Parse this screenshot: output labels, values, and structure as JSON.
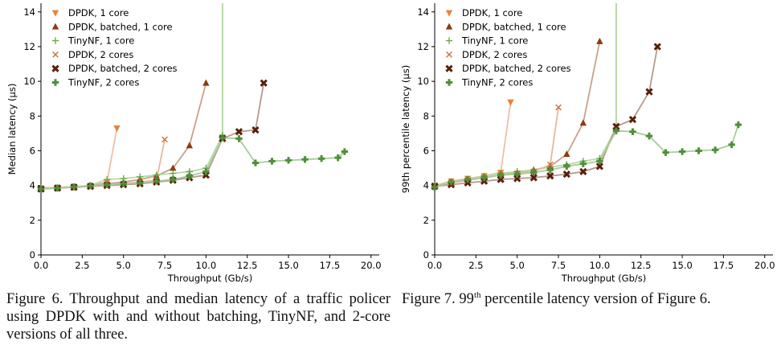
{
  "captions": {
    "fig6": "Figure 6. Throughput and median latency of a traffic policer using DPDK with and without batching, TinyNF, and 2-core versions of all three.",
    "fig7_prefix": "Figure 7. 99",
    "fig7_sup": "th",
    "fig7_suffix": " percentile latency version of Figure 6."
  },
  "chart_data": [
    {
      "type": "line",
      "xlabel": "Throughput (Gb/s)",
      "ylabel": "Median latency (µs)",
      "xlim": [
        0,
        20.5
      ],
      "ylim": [
        0,
        14.5
      ],
      "xticks": [
        "0.0",
        "2.5",
        "5.0",
        "7.5",
        "10.0",
        "12.5",
        "15.0",
        "17.5",
        "20.0"
      ],
      "yticks": [
        "0",
        "2",
        "4",
        "6",
        "8",
        "10",
        "12",
        "14"
      ],
      "legend_position": "top-left",
      "vertical_line_x": 11,
      "series": [
        {
          "name": "DPDK, 1 core",
          "marker": "triangle-down",
          "color": "#e8823a",
          "line_color": "#f2bfa0",
          "points": [
            [
              0,
              3.8
            ],
            [
              1,
              3.85
            ],
            [
              2,
              3.9
            ],
            [
              3,
              3.97
            ],
            [
              4,
              4.2
            ],
            [
              4.6,
              7.3
            ]
          ]
        },
        {
          "name": "DPDK, batched, 1 core",
          "marker": "triangle-up",
          "color": "#8b3a0f",
          "line_color": "#c9a08c",
          "points": [
            [
              0,
              3.85
            ],
            [
              1,
              3.88
            ],
            [
              2,
              3.92
            ],
            [
              3,
              4.0
            ],
            [
              4,
              4.1
            ],
            [
              5,
              4.2
            ],
            [
              6,
              4.35
            ],
            [
              7,
              4.55
            ],
            [
              8,
              5.0
            ],
            [
              9,
              6.3
            ],
            [
              10,
              9.9
            ]
          ]
        },
        {
          "name": "TinyNF, 1 core",
          "marker": "plus-thin",
          "color": "#6aab4c",
          "line_color": "#b7d9a6",
          "points": [
            [
              0,
              3.85
            ],
            [
              1,
              3.88
            ],
            [
              2,
              3.92
            ],
            [
              3,
              4.0
            ],
            [
              4,
              4.35
            ],
            [
              5,
              4.4
            ],
            [
              6,
              4.5
            ],
            [
              7,
              4.6
            ],
            [
              8,
              4.7
            ],
            [
              9,
              4.8
            ],
            [
              10,
              5.0
            ],
            [
              11,
              6.9
            ]
          ]
        },
        {
          "name": "DPDK, 2 cores",
          "marker": "x-thin",
          "color": "#cf6f3a",
          "line_color": "#e8b79a",
          "points": [
            [
              0,
              3.85
            ],
            [
              1,
              3.88
            ],
            [
              2,
              3.92
            ],
            [
              3,
              3.97
            ],
            [
              4,
              4.05
            ],
            [
              5,
              4.12
            ],
            [
              6,
              4.2
            ],
            [
              7,
              4.3
            ],
            [
              7.5,
              6.65
            ]
          ]
        },
        {
          "name": "DPDK, batched, 2 cores",
          "marker": "x-thick",
          "color": "#5a1f0a",
          "line_color": "#b59a8c",
          "points": [
            [
              0,
              3.8
            ],
            [
              1,
              3.85
            ],
            [
              2,
              3.9
            ],
            [
              3,
              3.95
            ],
            [
              4,
              4.0
            ],
            [
              5,
              4.05
            ],
            [
              6,
              4.1
            ],
            [
              7,
              4.2
            ],
            [
              8,
              4.3
            ],
            [
              9,
              4.45
            ],
            [
              10,
              4.6
            ],
            [
              11,
              6.7
            ],
            [
              12,
              7.1
            ],
            [
              13,
              7.2
            ],
            [
              13.5,
              9.9
            ]
          ]
        },
        {
          "name": "TinyNF, 2 cores",
          "marker": "plus-thick",
          "color": "#4f8f3a",
          "line_color": "#a9cc9a",
          "points": [
            [
              0,
              3.8
            ],
            [
              1,
              3.85
            ],
            [
              2,
              3.92
            ],
            [
              3,
              3.98
            ],
            [
              4,
              4.05
            ],
            [
              5,
              4.1
            ],
            [
              6,
              4.15
            ],
            [
              7,
              4.25
            ],
            [
              8,
              4.35
            ],
            [
              9,
              4.55
            ],
            [
              10,
              4.8
            ],
            [
              11,
              6.75
            ],
            [
              12,
              6.7
            ],
            [
              13,
              5.3
            ],
            [
              14,
              5.4
            ],
            [
              15,
              5.45
            ],
            [
              16,
              5.5
            ],
            [
              17,
              5.55
            ],
            [
              18,
              5.6
            ],
            [
              18.4,
              5.95
            ]
          ]
        }
      ]
    },
    {
      "type": "line",
      "xlabel": "Throughput (Gb/s)",
      "ylabel": "99th percentile latency (µs)",
      "xlim": [
        0,
        20.5
      ],
      "ylim": [
        0,
        14.5
      ],
      "xticks": [
        "0.0",
        "2.5",
        "5.0",
        "7.5",
        "10.0",
        "12.5",
        "15.0",
        "17.5",
        "20.0"
      ],
      "yticks": [
        "0",
        "2",
        "4",
        "6",
        "8",
        "10",
        "12",
        "14"
      ],
      "legend_position": "top-left",
      "vertical_line_x": 11,
      "series": [
        {
          "name": "DPDK, 1 core",
          "marker": "triangle-down",
          "color": "#e8823a",
          "line_color": "#f2bfa0",
          "points": [
            [
              0,
              4.0
            ],
            [
              1,
              4.25
            ],
            [
              2,
              4.4
            ],
            [
              3,
              4.55
            ],
            [
              4,
              4.75
            ],
            [
              4.6,
              8.8
            ]
          ]
        },
        {
          "name": "DPDK, batched, 1 core",
          "marker": "triangle-up",
          "color": "#8b3a0f",
          "line_color": "#c9a08c",
          "points": [
            [
              0,
              4.0
            ],
            [
              1,
              4.15
            ],
            [
              2,
              4.3
            ],
            [
              3,
              4.45
            ],
            [
              4,
              4.6
            ],
            [
              5,
              4.75
            ],
            [
              6,
              4.9
            ],
            [
              7,
              5.1
            ],
            [
              8,
              5.8
            ],
            [
              9,
              7.6
            ],
            [
              10,
              12.3
            ]
          ]
        },
        {
          "name": "TinyNF, 1 core",
          "marker": "plus-thin",
          "color": "#6aab4c",
          "line_color": "#b7d9a6",
          "points": [
            [
              0,
              4.0
            ],
            [
              1,
              4.2
            ],
            [
              2,
              4.35
            ],
            [
              3,
              4.55
            ],
            [
              4,
              4.7
            ],
            [
              5,
              4.8
            ],
            [
              6,
              4.9
            ],
            [
              7,
              5.05
            ],
            [
              8,
              5.2
            ],
            [
              9,
              5.4
            ],
            [
              10,
              5.55
            ],
            [
              11,
              7.3
            ]
          ]
        },
        {
          "name": "DPDK, 2 cores",
          "marker": "x-thin",
          "color": "#cf6f3a",
          "line_color": "#e8b79a",
          "points": [
            [
              0,
              4.0
            ],
            [
              1,
              4.15
            ],
            [
              2,
              4.3
            ],
            [
              3,
              4.45
            ],
            [
              4,
              4.6
            ],
            [
              5,
              4.7
            ],
            [
              6,
              4.8
            ],
            [
              7,
              5.2
            ],
            [
              7.5,
              8.5
            ]
          ]
        },
        {
          "name": "DPDK, batched, 2 cores",
          "marker": "x-thick",
          "color": "#5a1f0a",
          "line_color": "#b59a8c",
          "points": [
            [
              0,
              3.95
            ],
            [
              1,
              4.05
            ],
            [
              2,
              4.15
            ],
            [
              3,
              4.25
            ],
            [
              4,
              4.35
            ],
            [
              5,
              4.4
            ],
            [
              6,
              4.45
            ],
            [
              7,
              4.55
            ],
            [
              8,
              4.65
            ],
            [
              9,
              4.8
            ],
            [
              10,
              5.1
            ],
            [
              11,
              7.4
            ],
            [
              12,
              7.8
            ],
            [
              13,
              9.4
            ],
            [
              13.5,
              12.0
            ]
          ]
        },
        {
          "name": "TinyNF, 2 cores",
          "marker": "plus-thick",
          "color": "#4f8f3a",
          "line_color": "#a9cc9a",
          "points": [
            [
              0,
              3.9
            ],
            [
              1,
              4.2
            ],
            [
              2,
              4.35
            ],
            [
              3,
              4.45
            ],
            [
              4,
              4.6
            ],
            [
              5,
              4.65
            ],
            [
              6,
              4.75
            ],
            [
              7,
              4.9
            ],
            [
              8,
              5.1
            ],
            [
              9,
              5.25
            ],
            [
              10,
              5.4
            ],
            [
              11,
              7.15
            ],
            [
              12,
              7.1
            ],
            [
              13,
              6.85
            ],
            [
              14,
              5.9
            ],
            [
              15,
              5.95
            ],
            [
              16,
              6.0
            ],
            [
              17,
              6.05
            ],
            [
              18,
              6.35
            ],
            [
              18.4,
              7.5
            ]
          ]
        }
      ]
    }
  ]
}
